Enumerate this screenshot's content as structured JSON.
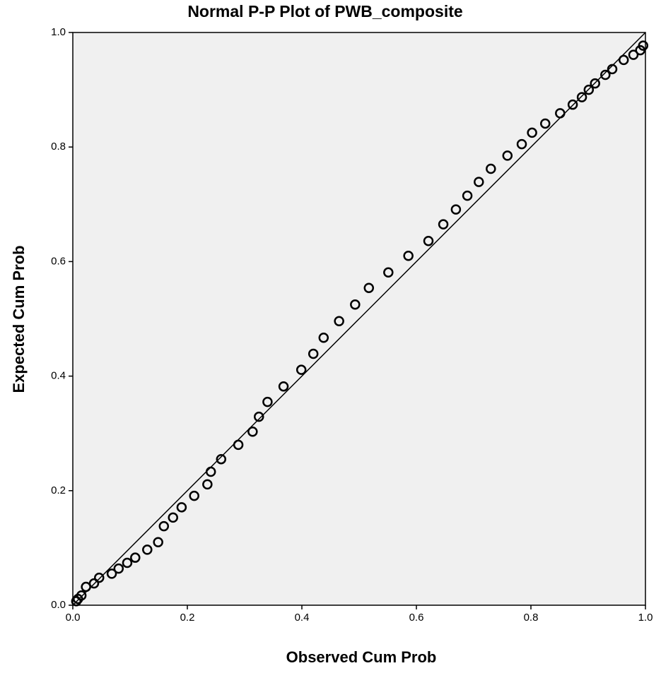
{
  "chart_data": {
    "type": "scatter",
    "title": "Normal P-P Plot of PWB_composite",
    "xlabel": "Observed Cum Prob",
    "ylabel": "Expected Cum Prob",
    "xlim": [
      0,
      1
    ],
    "ylim": [
      0,
      1
    ],
    "xticks": [
      {
        "value": 0,
        "label": "0.0"
      },
      0.2,
      0.4,
      0.6,
      0.8,
      {
        "value": 1,
        "label": "1.0"
      }
    ],
    "yticks": [
      {
        "value": 0,
        "label": "0.0"
      },
      0.2,
      0.4,
      0.6,
      0.8,
      {
        "value": 1,
        "label": "1.0"
      }
    ],
    "color": "#000000",
    "x": [
      0.006,
      0.009,
      0.015,
      0.023,
      0.037,
      0.046,
      0.068,
      0.08,
      0.095,
      0.109,
      0.13,
      0.149,
      0.159,
      0.175,
      0.19,
      0.212,
      0.235,
      0.241,
      0.259,
      0.289,
      0.314,
      0.325,
      0.34,
      0.368,
      0.399,
      0.42,
      0.438,
      0.465,
      0.493,
      0.517,
      0.551,
      0.586,
      0.621,
      0.647,
      0.669,
      0.689,
      0.709,
      0.73,
      0.759,
      0.784,
      0.802,
      0.825,
      0.851,
      0.873,
      0.889,
      0.901,
      0.912,
      0.93,
      0.942,
      0.962,
      0.979,
      0.991,
      0.996
    ],
    "values": [
      0.007,
      0.011,
      0.017,
      0.032,
      0.038,
      0.048,
      0.055,
      0.064,
      0.074,
      0.083,
      0.097,
      0.11,
      0.138,
      0.153,
      0.171,
      0.191,
      0.211,
      0.233,
      0.255,
      0.28,
      0.303,
      0.329,
      0.355,
      0.382,
      0.411,
      0.439,
      0.467,
      0.496,
      0.525,
      0.554,
      0.581,
      0.61,
      0.636,
      0.665,
      0.691,
      0.715,
      0.739,
      0.762,
      0.785,
      0.805,
      0.825,
      0.841,
      0.859,
      0.874,
      0.887,
      0.9,
      0.911,
      0.926,
      0.936,
      0.952,
      0.961,
      0.969,
      0.977
    ]
  }
}
